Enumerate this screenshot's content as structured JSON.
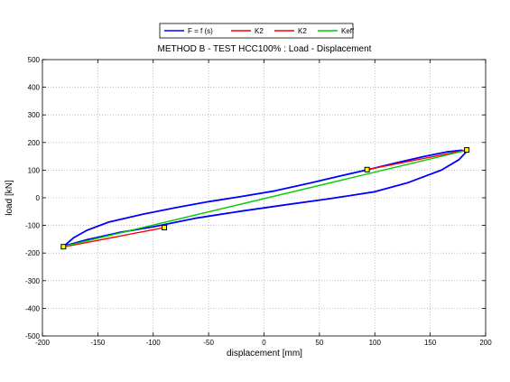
{
  "chart_data": {
    "type": "line",
    "title": "METHOD B - TEST HCC100% : Load - Displacement",
    "xlabel": "displacement [mm]",
    "ylabel": "load [kN]",
    "xlim": [
      -200,
      200
    ],
    "ylim": [
      -500,
      500
    ],
    "xticks": [
      -200,
      -150,
      -100,
      -50,
      0,
      50,
      100,
      150,
      200
    ],
    "yticks": [
      -500,
      -400,
      -300,
      -200,
      -100,
      0,
      100,
      200,
      300,
      400,
      500
    ],
    "grid": true,
    "legend_position": "top-center",
    "series": [
      {
        "name": "F = f (s)",
        "color": "#0000ff",
        "x": [
          -180,
          -172,
          -160,
          -140,
          -110,
          -80,
          -50,
          -20,
          10,
          40,
          70,
          95,
          120,
          145,
          165,
          178,
          183,
          176,
          160,
          130,
          100,
          60,
          20,
          -20,
          -60,
          -100,
          -130,
          -160,
          -178,
          -181,
          -180
        ],
        "y": [
          -173,
          -145,
          -118,
          -88,
          -60,
          -36,
          -14,
          5,
          25,
          52,
          80,
          103,
          127,
          150,
          166,
          172,
          168,
          138,
          100,
          55,
          22,
          -3,
          -25,
          -48,
          -73,
          -105,
          -125,
          -152,
          -172,
          -178,
          -173
        ]
      },
      {
        "name": "K2",
        "color": "#ff0000",
        "x": [
          -181,
          -90
        ],
        "y": [
          -178,
          -108
        ]
      },
      {
        "name": "K2",
        "color": "#ff0000",
        "x": [
          93,
          183
        ],
        "y": [
          102,
          173
        ]
      },
      {
        "name": "Keff",
        "color": "#00cc00",
        "x": [
          -181,
          183
        ],
        "y": [
          -176,
          172
        ]
      }
    ],
    "markers": {
      "color": "#000000",
      "fill": "#ffff00",
      "points": [
        {
          "x": -181,
          "y": -177
        },
        {
          "x": -90,
          "y": -108
        },
        {
          "x": 93,
          "y": 102
        },
        {
          "x": 183,
          "y": 173
        }
      ]
    }
  }
}
